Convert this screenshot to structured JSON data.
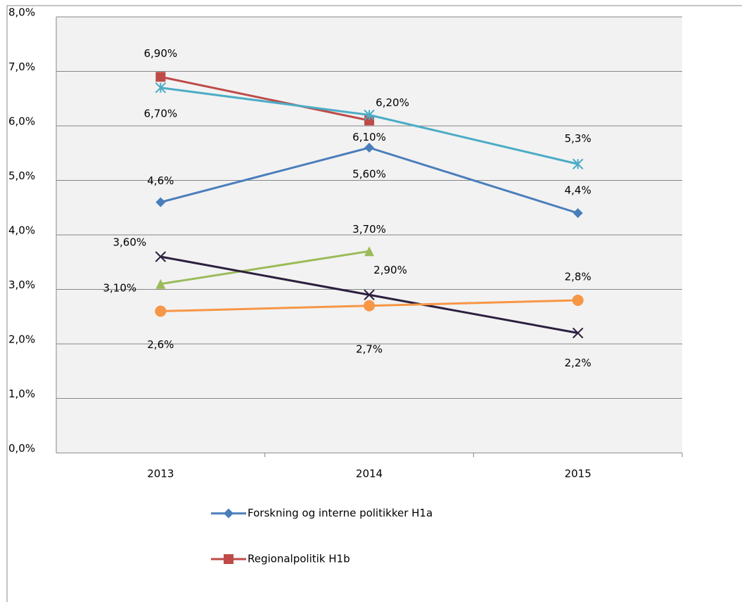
{
  "chart_data": {
    "type": "line",
    "categories": [
      "2013",
      "2014",
      "2015"
    ],
    "ylim": [
      0,
      8
    ],
    "yticks": [
      {
        "value": 0,
        "label": "0,0%"
      },
      {
        "value": 1,
        "label": "1,0%"
      },
      {
        "value": 2,
        "label": "2,0%"
      },
      {
        "value": 3,
        "label": "3,0%"
      },
      {
        "value": 4,
        "label": "4,0%"
      },
      {
        "value": 5,
        "label": "5,0%"
      },
      {
        "value": 6,
        "label": "6,0%"
      },
      {
        "value": 7,
        "label": "7,0%"
      },
      {
        "value": 8,
        "label": "8,0%"
      }
    ],
    "grid": true,
    "series": [
      {
        "name": "Forskning og interne politikker H1a",
        "color": "#4a7ebb",
        "marker": "diamond",
        "values": [
          4.6,
          5.6,
          4.4
        ],
        "value_labels": [
          "4,6%",
          "5,60%",
          "4,4%"
        ]
      },
      {
        "name": "Regionalpolitik H1b",
        "color": "#be4b48",
        "marker": "square",
        "values": [
          6.9,
          6.1,
          null
        ],
        "value_labels": [
          "6,90%",
          "6,10%",
          null
        ]
      },
      {
        "color": "#4bacc6",
        "marker": "star",
        "values": [
          6.7,
          6.2,
          5.3
        ],
        "value_labels": [
          "6,70%",
          "6,20%",
          "5,3%"
        ]
      },
      {
        "color": "#9bbb59",
        "marker": "triangle",
        "values": [
          3.1,
          3.7,
          null
        ],
        "value_labels": [
          "3,10%",
          "3,70%",
          null
        ]
      },
      {
        "color": "#2c1f3f",
        "marker": "x",
        "values": [
          3.6,
          2.9,
          2.2
        ],
        "value_labels": [
          "3,60%",
          "2,90%",
          "2,2%"
        ]
      },
      {
        "color": "#f79646",
        "marker": "circle",
        "values": [
          2.6,
          2.7,
          2.8
        ],
        "value_labels": [
          "2,6%",
          "2,7%",
          "2,8%"
        ]
      }
    ]
  }
}
